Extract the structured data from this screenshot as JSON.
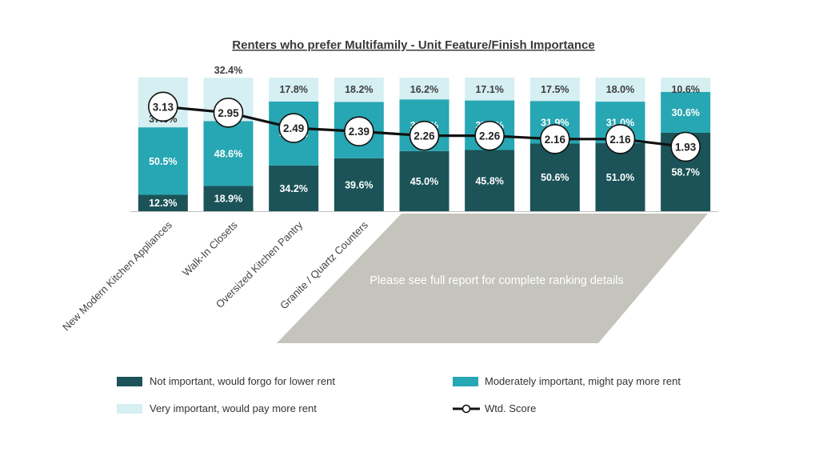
{
  "chart_data": {
    "type": "bar",
    "stacked": true,
    "title": "Renters who prefer Multifamily - Unit Feature/Finish Importance",
    "categories": [
      "New Modern Kitchen Appliances",
      "Walk-In Closets",
      "Oversized Kitchen Pantry",
      "Granite / Quartz Counters",
      "",
      "",
      "",
      "",
      ""
    ],
    "series": [
      {
        "name": "Not important, would forgo for lower rent",
        "color": "#1b5358",
        "values": [
          12.3,
          18.9,
          34.2,
          39.6,
          45.0,
          45.8,
          50.6,
          51.0,
          58.7
        ],
        "labels": [
          "12.3%",
          "18.9%",
          "34.2%",
          "39.6%",
          "45.0%",
          "45.8%",
          "50.6%",
          "51.0%",
          "58.7%"
        ]
      },
      {
        "name": "Moderately important, might pay more rent",
        "color": "#27a7b3",
        "values": [
          50.5,
          48.6,
          47.9,
          42.2,
          38.7,
          37.1,
          31.9,
          31.0,
          30.6
        ],
        "labels": [
          "50.5%",
          "48.6%",
          "47.9%",
          "42.2%",
          "38.7%",
          "37.1%",
          "31.9%",
          "31.0%",
          "30.6%"
        ]
      },
      {
        "name": "Very important, would pay more rent",
        "color": "#d5eff3",
        "values": [
          37.3,
          32.4,
          17.8,
          18.2,
          16.2,
          17.1,
          17.5,
          18.0,
          10.6
        ],
        "labels": [
          "37.3%",
          "32.4%",
          "17.8%",
          "18.2%",
          "16.2%",
          "17.1%",
          "17.5%",
          "18.0%",
          "10.6%"
        ]
      }
    ],
    "line_series": {
      "name": "Wtd. Score",
      "color": "#111111",
      "values": [
        3.13,
        2.95,
        2.49,
        2.39,
        2.26,
        2.26,
        2.16,
        2.16,
        1.93
      ],
      "labels": [
        "3.13",
        "2.95",
        "2.49",
        "2.39",
        "2.26",
        "2.26",
        "2.16",
        "2.16",
        "1.93"
      ],
      "ylim": [
        0,
        4
      ]
    },
    "ylim": [
      0,
      100
    ],
    "overlay_note": "Please see full report for complete ranking details",
    "overlay_color": "#c4c3bc",
    "legend_position": "bottom"
  }
}
